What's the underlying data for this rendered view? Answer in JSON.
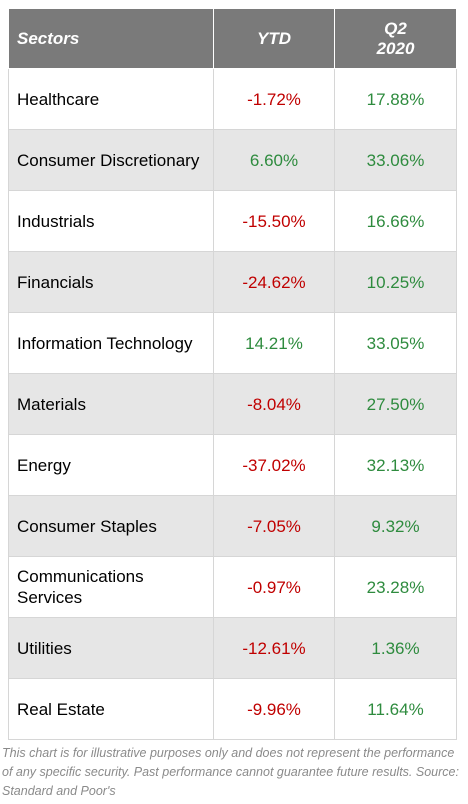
{
  "chart_data": {
    "type": "table",
    "columns": [
      "Sectors",
      "YTD",
      "Q2 2020"
    ],
    "rows": [
      {
        "sector": "Healthcare",
        "ytd": "-1.72%",
        "q2": "17.88%"
      },
      {
        "sector": "Consumer Discretionary",
        "ytd": "6.60%",
        "q2": "33.06%"
      },
      {
        "sector": "Industrials",
        "ytd": "-15.50%",
        "q2": "16.66%"
      },
      {
        "sector": "Financials",
        "ytd": "-24.62%",
        "q2": "10.25%"
      },
      {
        "sector": "Information Technology",
        "ytd": "14.21%",
        "q2": "33.05%"
      },
      {
        "sector": "Materials",
        "ytd": "-8.04%",
        "q2": "27.50%"
      },
      {
        "sector": "Energy",
        "ytd": "-37.02%",
        "q2": "32.13%"
      },
      {
        "sector": "Consumer Staples",
        "ytd": "-7.05%",
        "q2": "9.32%"
      },
      {
        "sector": "Communications Services",
        "ytd": "-0.97%",
        "q2": "23.28%"
      },
      {
        "sector": "Utilities",
        "ytd": "-12.61%",
        "q2": "1.36%"
      },
      {
        "sector": "Real Estate",
        "ytd": "-9.96%",
        "q2": "11.64%"
      }
    ]
  },
  "footnote": "This chart is for illustrative purposes only and does not represent the performance of any specific security. Past performance cannot guarantee future results. Source: Standard and Poor's",
  "colors": {
    "header_bg": "#7a7a7a",
    "row_alt_bg": "#e6e6e6",
    "negative": "#c00000",
    "positive": "#2e8b3e"
  }
}
